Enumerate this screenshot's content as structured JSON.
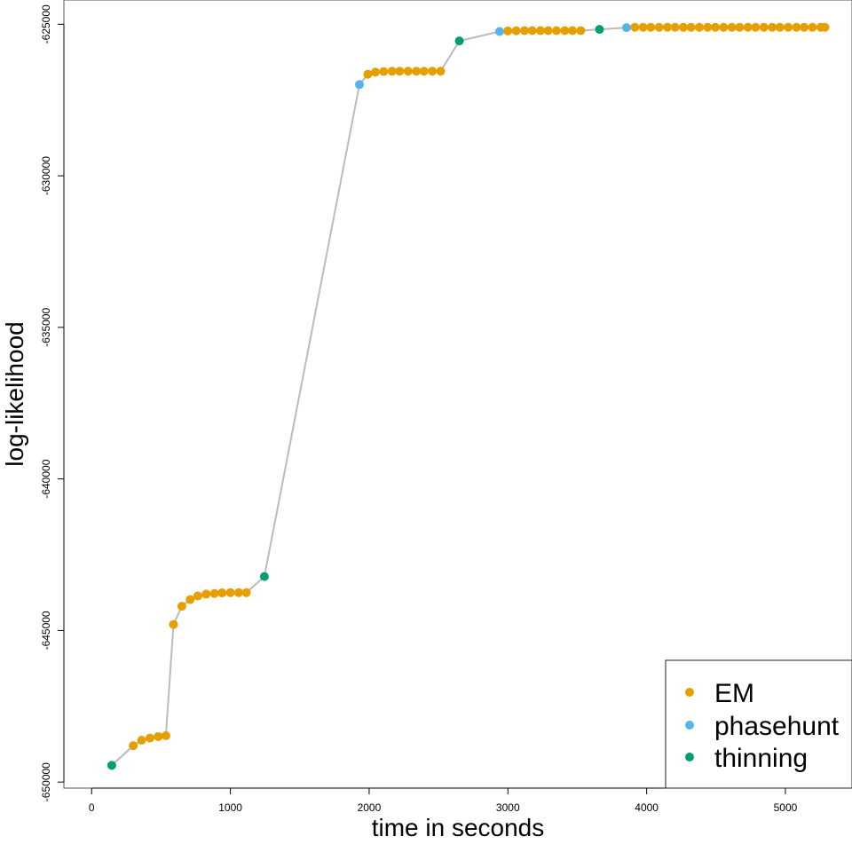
{
  "chart_data": {
    "type": "scatter",
    "xlabel": "time in seconds",
    "ylabel": "log-likelihood",
    "xlim": [
      -200,
      5480
    ],
    "ylim": [
      -650200,
      -624200
    ],
    "x_ticks": [
      0,
      1000,
      2000,
      3000,
      4000,
      5000
    ],
    "x_tick_labels": [
      "0",
      "1000",
      "2000",
      "3000",
      "4000",
      "5000"
    ],
    "y_ticks": [
      -625000,
      -630000,
      -635000,
      -640000,
      -645000,
      -650000
    ],
    "y_tick_labels": [
      "-625000",
      "-630000",
      "-635000",
      "-640000",
      "-645000",
      "-650000"
    ],
    "grid": false,
    "connecting_line_color": "#bbbbbb",
    "legend": {
      "position": "bottom-right",
      "entries": [
        {
          "label": "EM",
          "color": "#E69F00"
        },
        {
          "label": "phasehunt",
          "color": "#56B4E9"
        },
        {
          "label": "thinning",
          "color": "#009E73"
        }
      ]
    },
    "points": [
      {
        "x": 145,
        "y": -649450,
        "kind": "thinning"
      },
      {
        "x": 300,
        "y": -648800,
        "kind": "EM"
      },
      {
        "x": 360,
        "y": -648620,
        "kind": "EM"
      },
      {
        "x": 420,
        "y": -648550,
        "kind": "EM"
      },
      {
        "x": 480,
        "y": -648500,
        "kind": "EM"
      },
      {
        "x": 535,
        "y": -648470,
        "kind": "EM"
      },
      {
        "x": 590,
        "y": -644800,
        "kind": "EM"
      },
      {
        "x": 650,
        "y": -644200,
        "kind": "EM"
      },
      {
        "x": 710,
        "y": -643980,
        "kind": "EM"
      },
      {
        "x": 765,
        "y": -643860,
        "kind": "EM"
      },
      {
        "x": 825,
        "y": -643800,
        "kind": "EM"
      },
      {
        "x": 885,
        "y": -643780,
        "kind": "EM"
      },
      {
        "x": 940,
        "y": -643760,
        "kind": "EM"
      },
      {
        "x": 1000,
        "y": -643750,
        "kind": "EM"
      },
      {
        "x": 1060,
        "y": -643750,
        "kind": "EM"
      },
      {
        "x": 1115,
        "y": -643750,
        "kind": "EM"
      },
      {
        "x": 1245,
        "y": -643220,
        "kind": "thinning"
      },
      {
        "x": 1930,
        "y": -626990,
        "kind": "phasehunt"
      },
      {
        "x": 1990,
        "y": -626650,
        "kind": "EM"
      },
      {
        "x": 2045,
        "y": -626580,
        "kind": "EM"
      },
      {
        "x": 2105,
        "y": -626560,
        "kind": "EM"
      },
      {
        "x": 2165,
        "y": -626550,
        "kind": "EM"
      },
      {
        "x": 2220,
        "y": -626550,
        "kind": "EM"
      },
      {
        "x": 2280,
        "y": -626550,
        "kind": "EM"
      },
      {
        "x": 2340,
        "y": -626550,
        "kind": "EM"
      },
      {
        "x": 2395,
        "y": -626550,
        "kind": "EM"
      },
      {
        "x": 2455,
        "y": -626550,
        "kind": "EM"
      },
      {
        "x": 2515,
        "y": -626550,
        "kind": "EM"
      },
      {
        "x": 2650,
        "y": -625550,
        "kind": "thinning"
      },
      {
        "x": 2940,
        "y": -625240,
        "kind": "phasehunt"
      },
      {
        "x": 3000,
        "y": -625220,
        "kind": "EM"
      },
      {
        "x": 3060,
        "y": -625215,
        "kind": "EM"
      },
      {
        "x": 3120,
        "y": -625210,
        "kind": "EM"
      },
      {
        "x": 3175,
        "y": -625210,
        "kind": "EM"
      },
      {
        "x": 3235,
        "y": -625210,
        "kind": "EM"
      },
      {
        "x": 3290,
        "y": -625210,
        "kind": "EM"
      },
      {
        "x": 3350,
        "y": -625210,
        "kind": "EM"
      },
      {
        "x": 3410,
        "y": -625210,
        "kind": "EM"
      },
      {
        "x": 3465,
        "y": -625210,
        "kind": "EM"
      },
      {
        "x": 3525,
        "y": -625210,
        "kind": "EM"
      },
      {
        "x": 3660,
        "y": -625170,
        "kind": "thinning"
      },
      {
        "x": 3855,
        "y": -625110,
        "kind": "phasehunt"
      },
      {
        "x": 3915,
        "y": -625100,
        "kind": "EM"
      },
      {
        "x": 3975,
        "y": -625100,
        "kind": "EM"
      },
      {
        "x": 4030,
        "y": -625100,
        "kind": "EM"
      },
      {
        "x": 4090,
        "y": -625100,
        "kind": "EM"
      },
      {
        "x": 4150,
        "y": -625100,
        "kind": "EM"
      },
      {
        "x": 4205,
        "y": -625100,
        "kind": "EM"
      },
      {
        "x": 4265,
        "y": -625100,
        "kind": "EM"
      },
      {
        "x": 4320,
        "y": -625100,
        "kind": "EM"
      },
      {
        "x": 4380,
        "y": -625100,
        "kind": "EM"
      },
      {
        "x": 4440,
        "y": -625100,
        "kind": "EM"
      },
      {
        "x": 4495,
        "y": -625100,
        "kind": "EM"
      },
      {
        "x": 4555,
        "y": -625100,
        "kind": "EM"
      },
      {
        "x": 4615,
        "y": -625100,
        "kind": "EM"
      },
      {
        "x": 4670,
        "y": -625100,
        "kind": "EM"
      },
      {
        "x": 4730,
        "y": -625100,
        "kind": "EM"
      },
      {
        "x": 4785,
        "y": -625100,
        "kind": "EM"
      },
      {
        "x": 4845,
        "y": -625100,
        "kind": "EM"
      },
      {
        "x": 4905,
        "y": -625100,
        "kind": "EM"
      },
      {
        "x": 4960,
        "y": -625100,
        "kind": "EM"
      },
      {
        "x": 5020,
        "y": -625100,
        "kind": "EM"
      },
      {
        "x": 5080,
        "y": -625100,
        "kind": "EM"
      },
      {
        "x": 5135,
        "y": -625100,
        "kind": "EM"
      },
      {
        "x": 5195,
        "y": -625100,
        "kind": "EM"
      },
      {
        "x": 5255,
        "y": -625100,
        "kind": "EM"
      },
      {
        "x": 5285,
        "y": -625100,
        "kind": "EM"
      }
    ]
  }
}
